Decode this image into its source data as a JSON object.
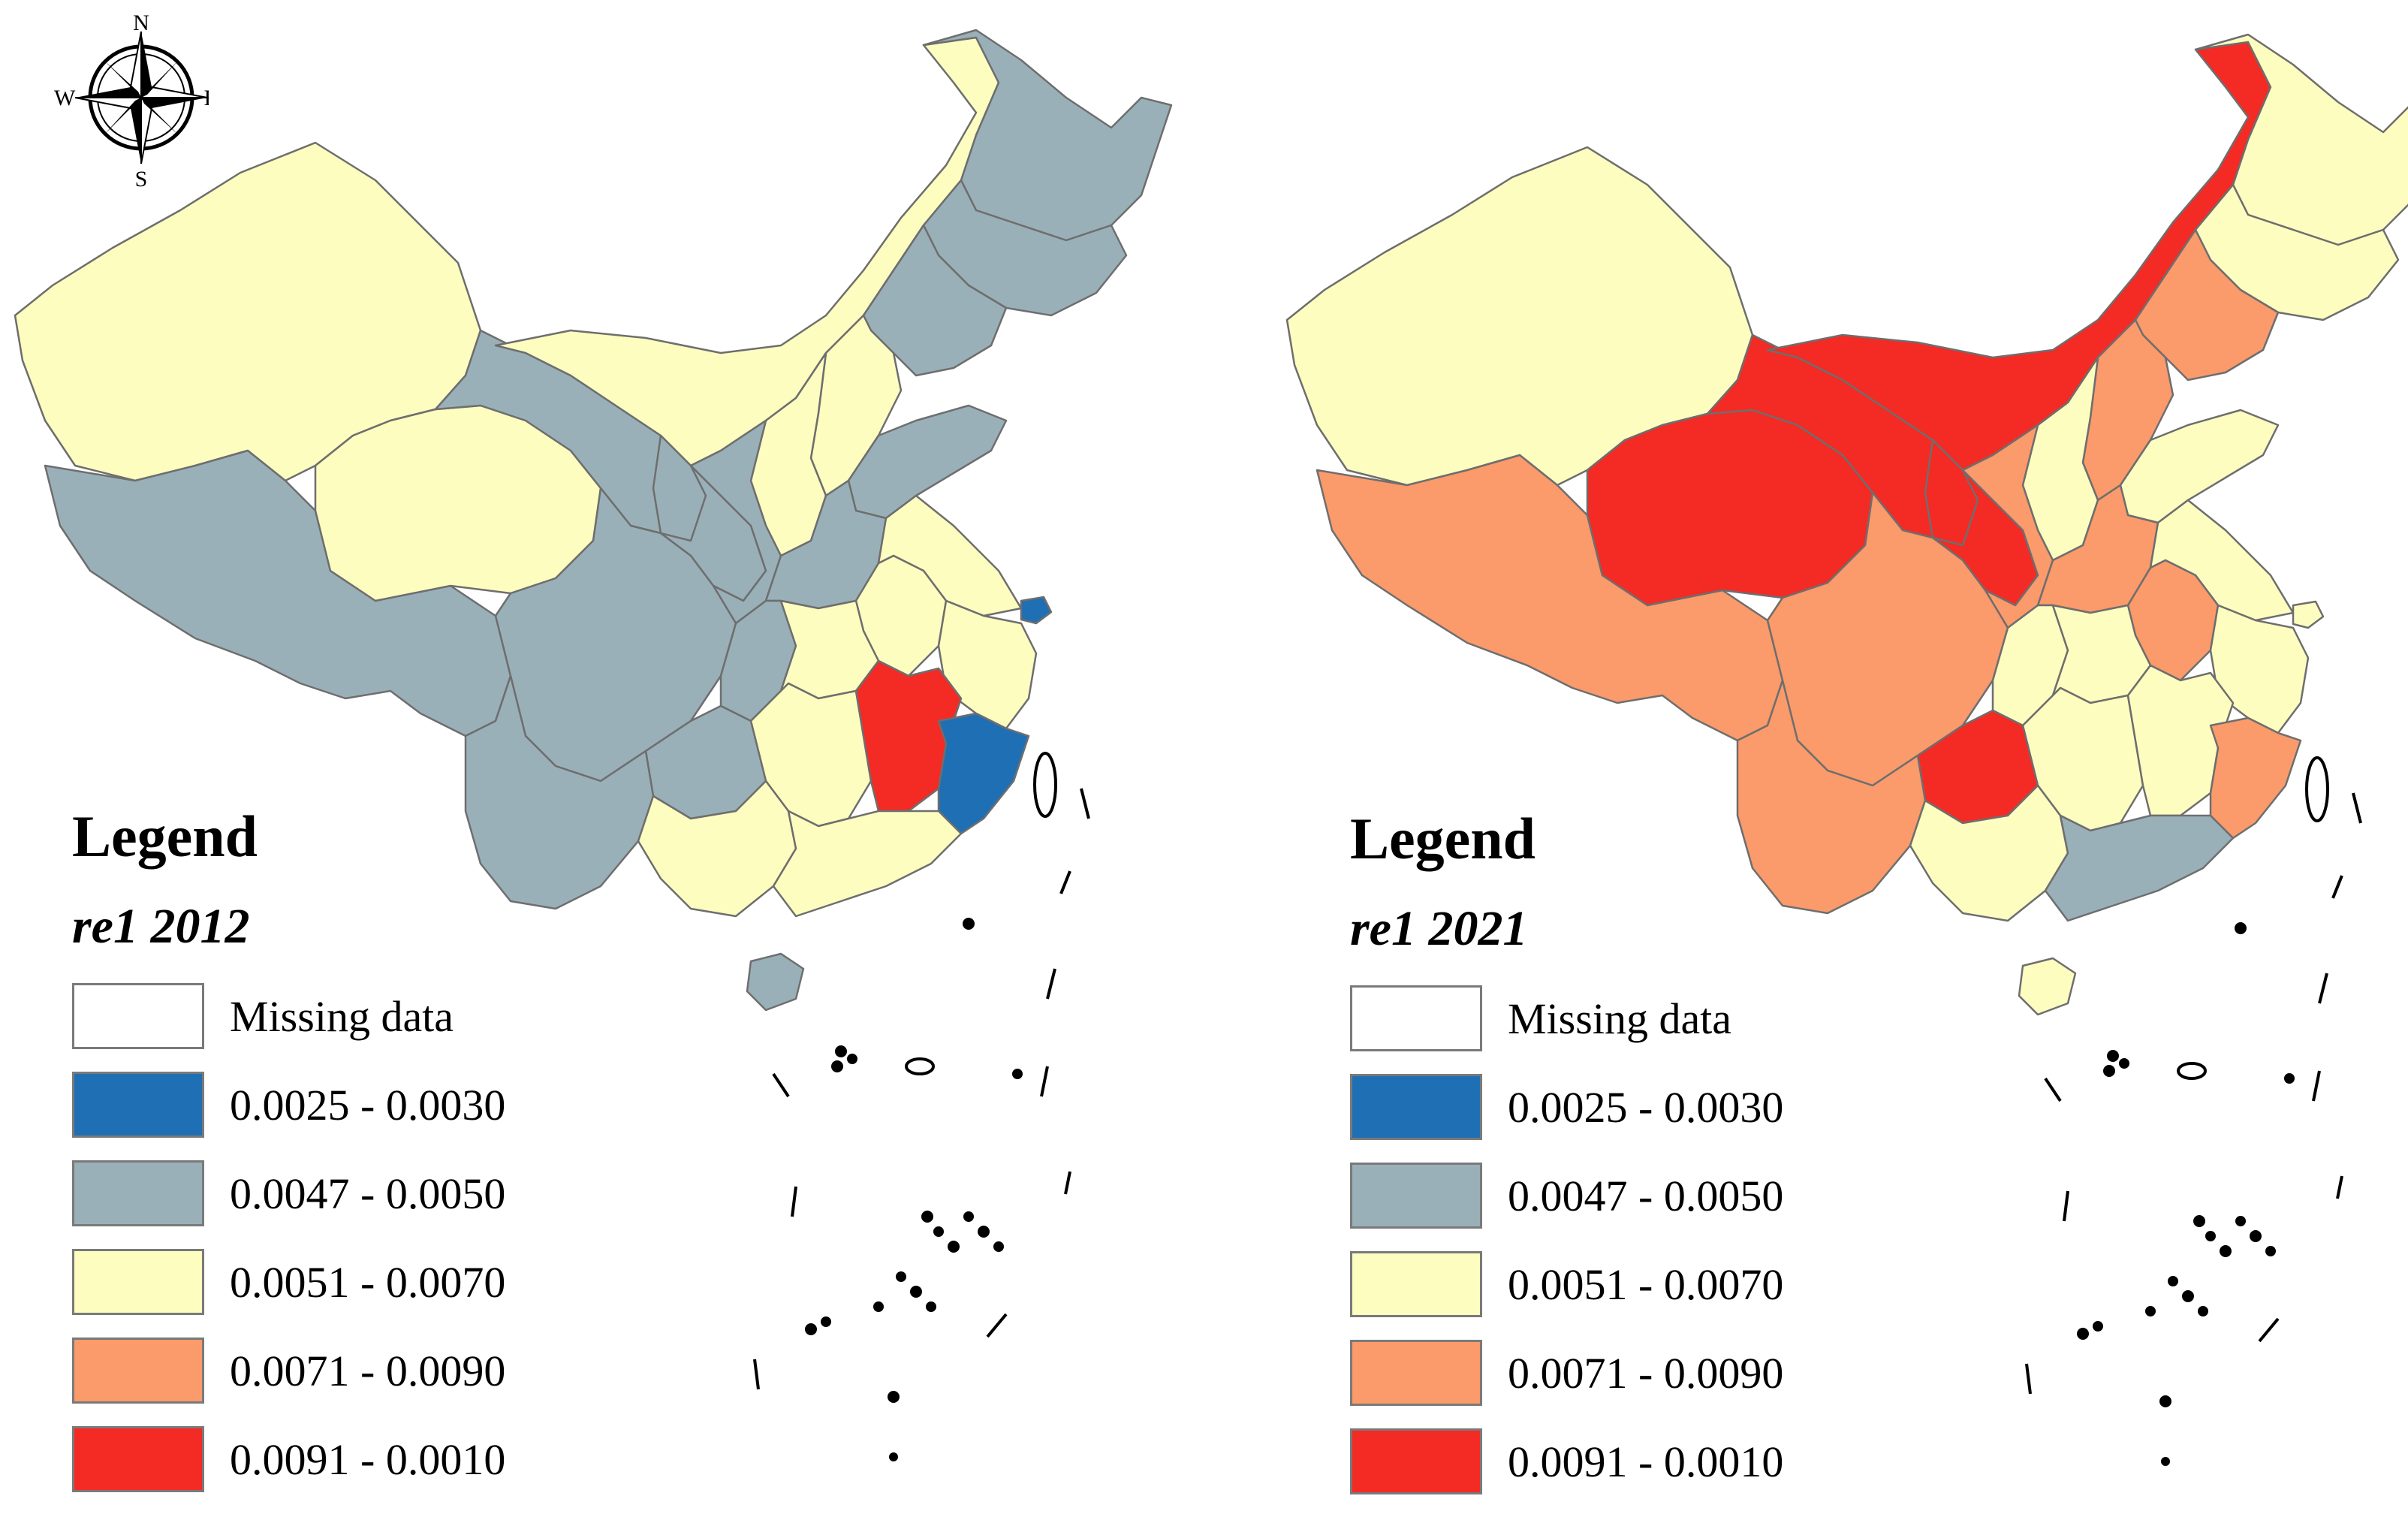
{
  "compass": {
    "n": "N",
    "s": "S",
    "e": "E",
    "w": "W"
  },
  "legend_bins": [
    {
      "label": "Missing data",
      "color": "#ffffff"
    },
    {
      "label": "0.0025 - 0.0030",
      "color": "#1f6fb5"
    },
    {
      "label": "0.0047 - 0.0050",
      "color": "#9ab0b9"
    },
    {
      "label": "0.0051 - 0.0070",
      "color": "#fdfdc0"
    },
    {
      "label": "0.0071 - 0.0090",
      "color": "#fb9a6a"
    },
    {
      "label": "0.0091 - 0.0010",
      "color": "#f42a24"
    }
  ],
  "panels": [
    {
      "legend_title": "Legend",
      "legend_subtitle": "re1 2012",
      "regions": {
        "xinjiang": "0.0051 - 0.0070",
        "tibet": "0.0047 - 0.0050",
        "qinghai": "0.0051 - 0.0070",
        "gansu": "0.0047 - 0.0050",
        "inner_mongolia": "0.0051 - 0.0070",
        "heilongjiang": "0.0047 - 0.0050",
        "jilin": "0.0047 - 0.0050",
        "liaoning": "0.0047 - 0.0050",
        "sichuan": "0.0047 - 0.0050",
        "yunnan": "0.0047 - 0.0050",
        "ningxia": "0.0047 - 0.0050",
        "shaanxi": "0.0047 - 0.0050",
        "shanxi": "0.0051 - 0.0070",
        "hebei": "0.0051 - 0.0070",
        "shandong": "0.0047 - 0.0050",
        "henan": "0.0047 - 0.0050",
        "hubei": "0.0051 - 0.0070",
        "chongqing": "0.0047 - 0.0050",
        "guizhou": "0.0047 - 0.0050",
        "hunan": "0.0051 - 0.0070",
        "jiangxi": "0.0091 - 0.0010",
        "fujian": "0.0025 - 0.0030",
        "zhejiang": "0.0051 - 0.0070",
        "anhui": "0.0051 - 0.0070",
        "jiangsu": "0.0051 - 0.0070",
        "shanghai": "0.0025 - 0.0030",
        "guangxi": "0.0051 - 0.0070",
        "guangdong": "0.0051 - 0.0070",
        "hainan": "0.0047 - 0.0050"
      }
    },
    {
      "legend_title": "Legend",
      "legend_subtitle": "re1 2021",
      "regions": {
        "xinjiang": "0.0051 - 0.0070",
        "tibet": "0.0071 - 0.0090",
        "qinghai": "0.0091 - 0.0010",
        "gansu": "0.0091 - 0.0010",
        "inner_mongolia": "0.0091 - 0.0010",
        "heilongjiang": "0.0051 - 0.0070",
        "jilin": "0.0051 - 0.0070",
        "liaoning": "0.0071 - 0.0090",
        "sichuan": "0.0071 - 0.0090",
        "yunnan": "0.0071 - 0.0090",
        "ningxia": "0.0091 - 0.0010",
        "shaanxi": "0.0071 - 0.0090",
        "shanxi": "0.0051 - 0.0070",
        "hebei": "0.0071 - 0.0090",
        "shandong": "0.0051 - 0.0070",
        "henan": "0.0071 - 0.0090",
        "hubei": "0.0051 - 0.0070",
        "chongqing": "0.0051 - 0.0070",
        "guizhou": "0.0091 - 0.0010",
        "hunan": "0.0051 - 0.0070",
        "jiangxi": "0.0051 - 0.0070",
        "fujian": "0.0071 - 0.0090",
        "zhejiang": "0.0051 - 0.0070",
        "anhui": "0.0071 - 0.0090",
        "jiangsu": "0.0051 - 0.0070",
        "shanghai": "0.0051 - 0.0070",
        "guangxi": "0.0051 - 0.0070",
        "guangdong": "0.0047 - 0.0050",
        "hainan": "0.0051 - 0.0070"
      }
    }
  ]
}
